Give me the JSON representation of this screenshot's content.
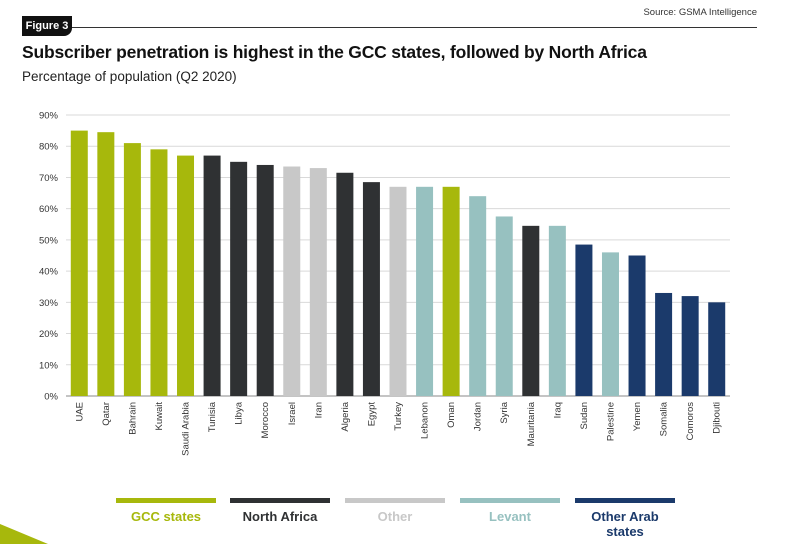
{
  "figure_label": "Figure 3",
  "source": "Source: GSMA Intelligence",
  "colors": {
    "GCC states": "#a7b80c",
    "North Africa": "#2f3133",
    "Other": "#c8c8c8",
    "Levant": "#97c1c0",
    "Other Arab states": "#1b3a6b"
  },
  "legend": [
    {
      "label": "GCC states",
      "group": "GCC states"
    },
    {
      "label": "North Africa",
      "group": "North Africa"
    },
    {
      "label": "Other",
      "group": "Other"
    },
    {
      "label": "Levant",
      "group": "Levant"
    },
    {
      "label": "Other Arab states",
      "group": "Other Arab states"
    }
  ],
  "chart_data": {
    "type": "bar",
    "title": "Subscriber penetration is highest in the GCC states, followed by North Africa",
    "subtitle": "Percentage of population (Q2 2020)",
    "xlabel": "",
    "ylabel": "",
    "ylim": [
      0,
      90
    ],
    "yticks": [
      "0%",
      "10%",
      "20%",
      "30%",
      "40%",
      "50%",
      "60%",
      "70%",
      "80%",
      "90%"
    ],
    "grid": true,
    "categories": [
      "UAE",
      "Qatar",
      "Bahrain",
      "Kuwait",
      "Saudi Arabia",
      "Tunisia",
      "Libya",
      "Morocco",
      "Israel",
      "Iran",
      "Algeria",
      "Egypt",
      "Turkey",
      "Lebanon",
      "Oman",
      "Jordan",
      "Syria",
      "Mauritania",
      "Iraq",
      "Sudan",
      "Palestine",
      "Yemen",
      "Somalia",
      "Comoros",
      "Djibouti"
    ],
    "values": [
      85,
      84.5,
      81,
      79,
      77,
      77,
      75,
      74,
      73.5,
      73,
      71.5,
      68.5,
      67,
      67,
      67,
      64,
      57.5,
      54.5,
      54.5,
      48.5,
      46,
      45,
      33,
      32,
      30
    ],
    "groups": [
      "GCC states",
      "GCC states",
      "GCC states",
      "GCC states",
      "GCC states",
      "North Africa",
      "North Africa",
      "North Africa",
      "Other",
      "Other",
      "North Africa",
      "North Africa",
      "Other",
      "Levant",
      "GCC states",
      "Levant",
      "Levant",
      "North Africa",
      "Levant",
      "Other Arab states",
      "Levant",
      "Other Arab states",
      "Other Arab states",
      "Other Arab states",
      "Other Arab states"
    ]
  }
}
